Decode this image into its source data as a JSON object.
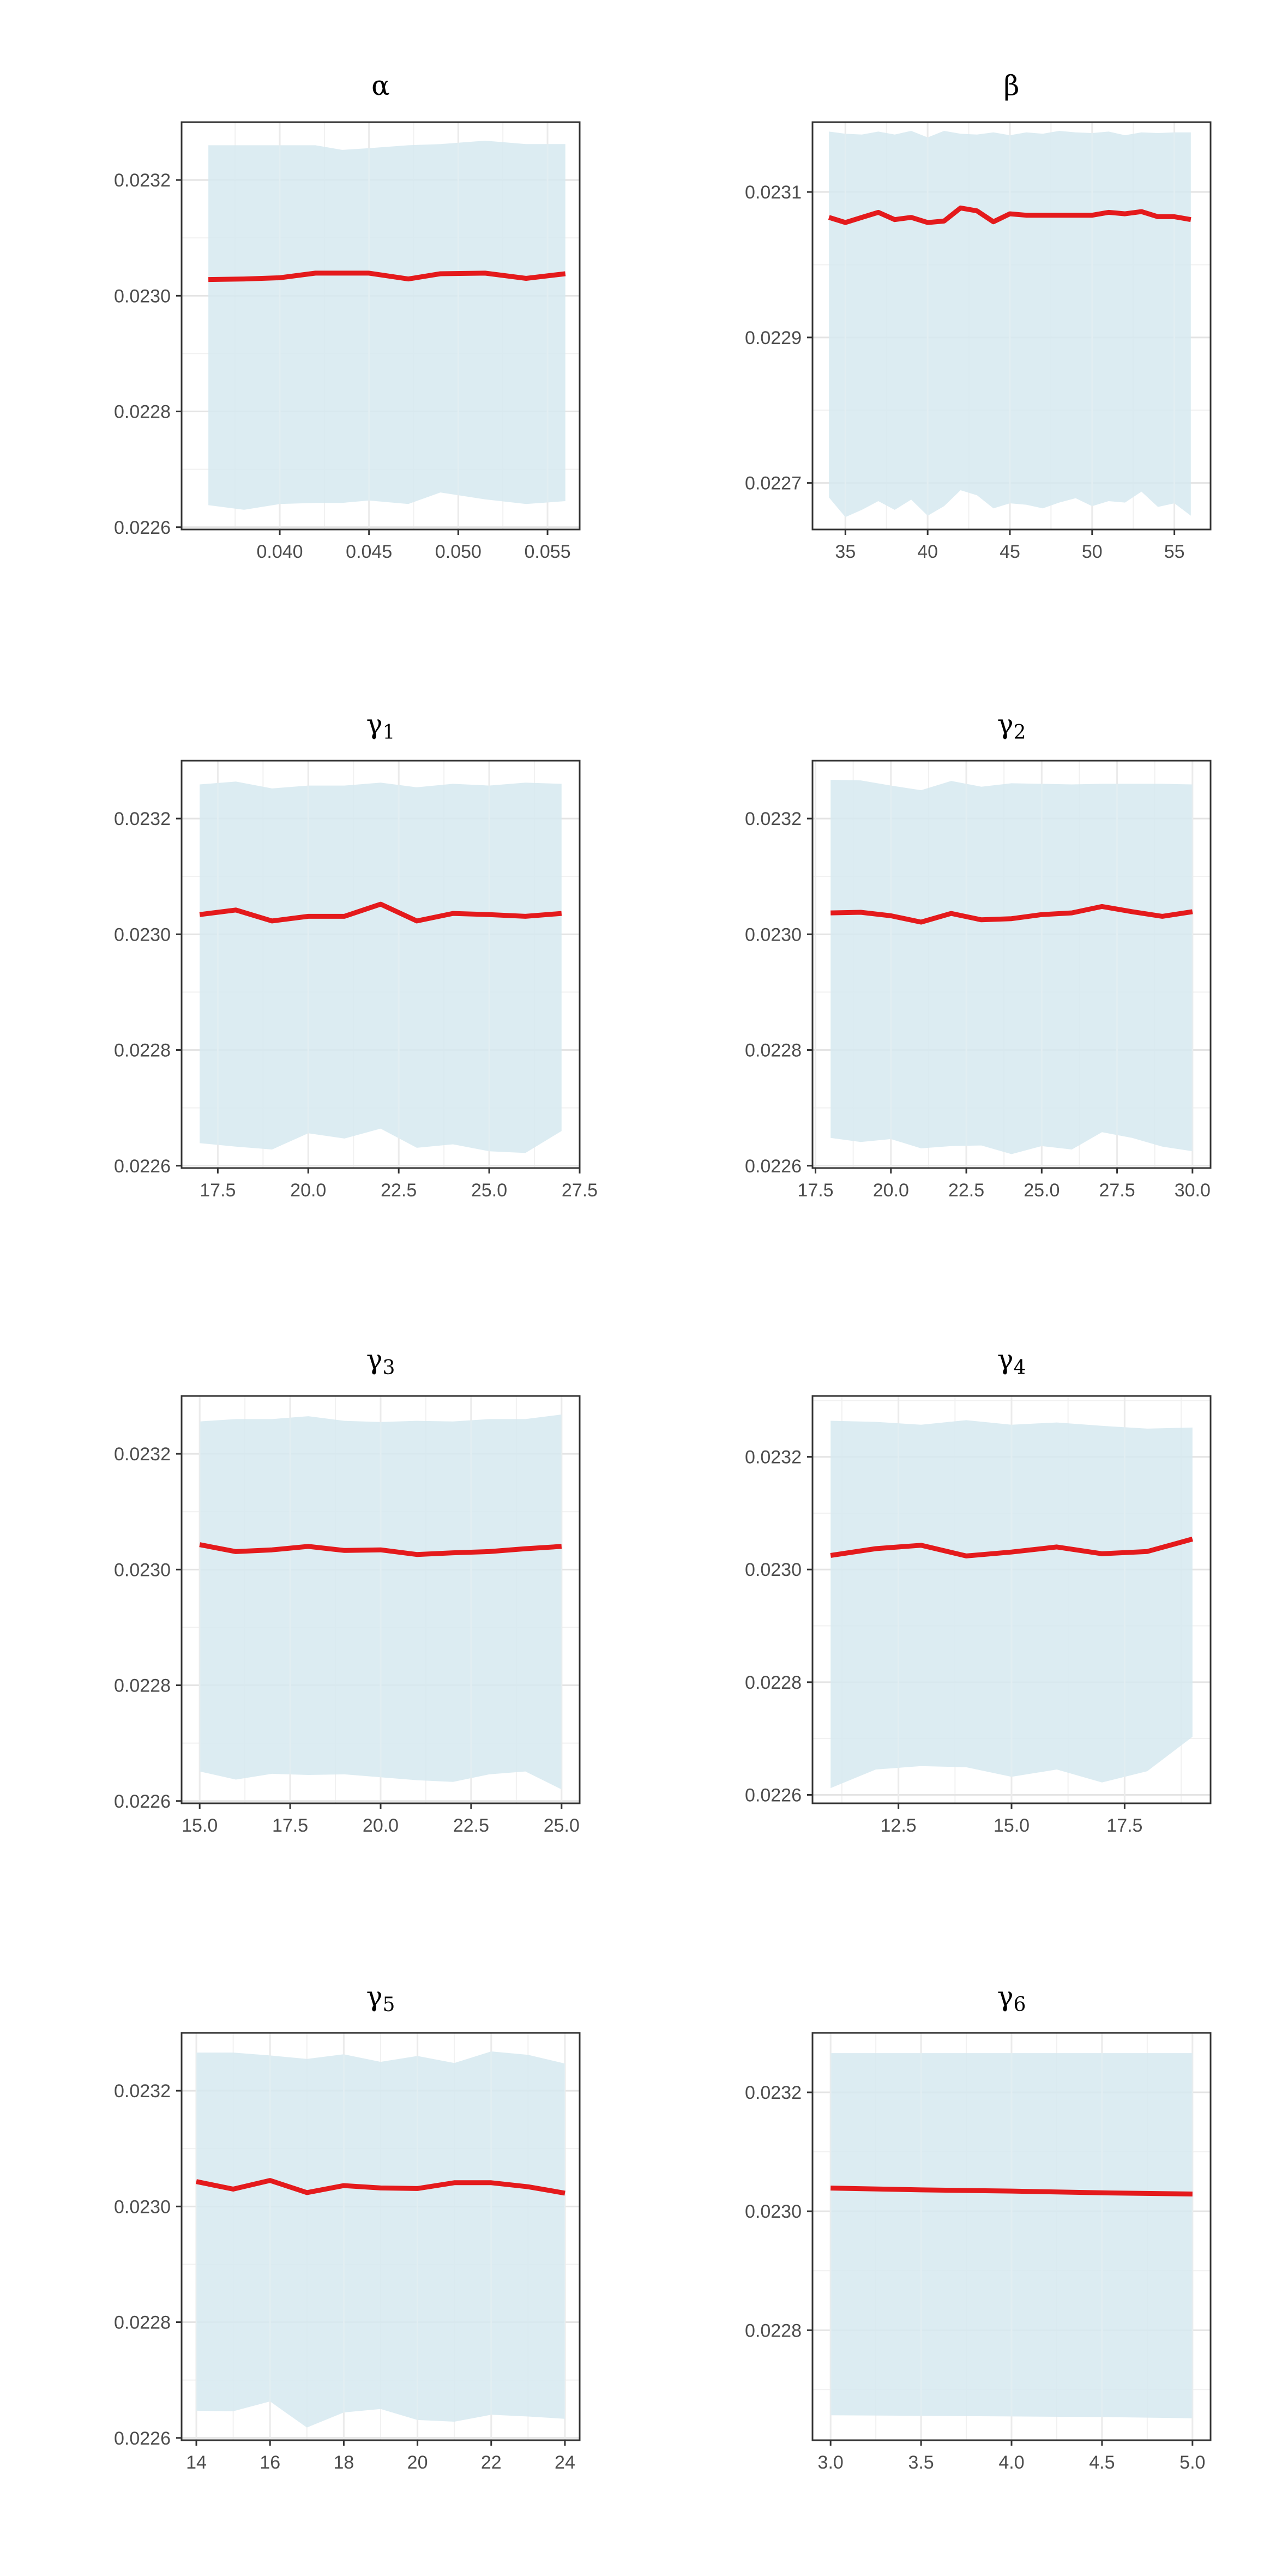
{
  "colors": {
    "band": "#d6e9f0",
    "line": "#e41a1c",
    "grid_major": "#e4e4e4",
    "grid_minor": "#f1f1f1",
    "frame": "#333333",
    "tick_text": "#4d4d4d"
  },
  "chart_data": [
    {
      "type": "line",
      "title": "α",
      "title_sub": "",
      "x": [
        0.036,
        0.038,
        0.04,
        0.042,
        0.0435,
        0.045,
        0.0472,
        0.049,
        0.0515,
        0.0538,
        0.056
      ],
      "y": [
        0.023028,
        0.023029,
        0.023031,
        0.023039,
        0.023039,
        0.023039,
        0.023029,
        0.023038,
        0.023039,
        0.02303,
        0.023038
      ],
      "band_upper": [
        0.02326,
        0.02326,
        0.02326,
        0.02326,
        0.023252,
        0.023255,
        0.02326,
        0.023262,
        0.023268,
        0.023262,
        0.023262
      ],
      "band_lower": [
        0.022638,
        0.02263,
        0.02264,
        0.022642,
        0.022642,
        0.022646,
        0.02264,
        0.02266,
        0.022648,
        0.02264,
        0.022645
      ],
      "xlim": [
        0.0345,
        0.0568
      ],
      "ylim": [
        0.022596,
        0.0233
      ],
      "xticks": [
        0.04,
        0.045,
        0.05,
        0.055
      ],
      "xtick_labels": [
        "0.040",
        "0.045",
        "0.050",
        "0.055"
      ],
      "yticks": [
        0.0226,
        0.0228,
        0.023,
        0.0232
      ],
      "ytick_labels": [
        "0.0226",
        "0.0228",
        "0.0230",
        "0.0232"
      ],
      "grid": true,
      "legend": "none"
    },
    {
      "type": "line",
      "title": "β",
      "title_sub": "",
      "x": [
        34,
        35,
        36,
        37,
        38,
        39,
        40,
        41,
        42,
        43,
        44,
        45,
        46,
        47,
        48,
        49,
        50,
        51,
        52,
        53,
        54,
        55,
        56
      ],
      "y": [
        0.023065,
        0.023058,
        0.023065,
        0.023072,
        0.023062,
        0.023065,
        0.023058,
        0.02306,
        0.023078,
        0.023074,
        0.023059,
        0.02307,
        0.023068,
        0.023068,
        0.023068,
        0.023068,
        0.023068,
        0.023072,
        0.02307,
        0.023073,
        0.023066,
        0.023066,
        0.023062
      ],
      "band_upper": [
        0.023183,
        0.02318,
        0.023179,
        0.023183,
        0.023179,
        0.023184,
        0.023175,
        0.023184,
        0.02318,
        0.023179,
        0.023182,
        0.023178,
        0.023182,
        0.02318,
        0.023184,
        0.023182,
        0.023181,
        0.023183,
        0.023178,
        0.023182,
        0.023181,
        0.023182,
        0.023182
      ],
      "band_lower": [
        0.02268,
        0.022653,
        0.022663,
        0.022675,
        0.022663,
        0.022677,
        0.022655,
        0.022668,
        0.02269,
        0.022683,
        0.022665,
        0.022672,
        0.02267,
        0.022665,
        0.022673,
        0.022679,
        0.022668,
        0.022675,
        0.022673,
        0.022688,
        0.022667,
        0.022672,
        0.022655
      ],
      "xlim": [
        33.0,
        57.2
      ],
      "ylim": [
        0.022636,
        0.023196
      ],
      "xticks": [
        35,
        40,
        45,
        50,
        55
      ],
      "xtick_labels": [
        "35",
        "40",
        "45",
        "50",
        "55"
      ],
      "yticks": [
        0.0227,
        0.0229,
        0.0231
      ],
      "ytick_labels": [
        "0.0227",
        "0.0229",
        "0.0231"
      ],
      "grid": true,
      "legend": "none"
    },
    {
      "type": "line",
      "title": "γ",
      "title_sub": "1",
      "x": [
        17,
        18,
        19,
        20,
        21,
        22,
        23,
        24,
        25,
        26,
        27
      ],
      "y": [
        0.023034,
        0.023042,
        0.023023,
        0.023031,
        0.023031,
        0.023052,
        0.023023,
        0.023036,
        0.023034,
        0.023031,
        0.023036
      ],
      "band_upper": [
        0.023259,
        0.023264,
        0.023252,
        0.023257,
        0.023257,
        0.023262,
        0.023254,
        0.02326,
        0.023257,
        0.023262,
        0.02326
      ],
      "band_lower": [
        0.022639,
        0.022633,
        0.022628,
        0.022656,
        0.022647,
        0.022664,
        0.022631,
        0.022637,
        0.022625,
        0.022622,
        0.02266
      ],
      "xlim": [
        16.5,
        27.5
      ],
      "ylim": [
        0.022596,
        0.0233
      ],
      "xticks": [
        17.5,
        20.0,
        22.5,
        25.0,
        27.5
      ],
      "xtick_labels": [
        "17.5",
        "20.0",
        "22.5",
        "25.0",
        "27.5"
      ],
      "yticks": [
        0.0226,
        0.0228,
        0.023,
        0.0232
      ],
      "ytick_labels": [
        "0.0226",
        "0.0228",
        "0.0230",
        "0.0232"
      ],
      "grid": true,
      "legend": "none"
    },
    {
      "type": "line",
      "title": "γ",
      "title_sub": "2",
      "x": [
        18,
        19,
        20,
        21,
        22,
        23,
        24,
        25,
        26,
        27,
        28,
        29,
        30
      ],
      "y": [
        0.023037,
        0.023038,
        0.023032,
        0.023021,
        0.023036,
        0.023025,
        0.023027,
        0.023034,
        0.023037,
        0.023048,
        0.023039,
        0.023031,
        0.023039
      ],
      "band_upper": [
        0.023267,
        0.023266,
        0.023257,
        0.023249,
        0.023265,
        0.023255,
        0.023261,
        0.02326,
        0.023259,
        0.02326,
        0.02326,
        0.02326,
        0.023259
      ],
      "band_lower": [
        0.022648,
        0.022641,
        0.022646,
        0.02263,
        0.022634,
        0.022635,
        0.02262,
        0.022634,
        0.022628,
        0.022658,
        0.022648,
        0.022633,
        0.022625
      ],
      "xlim": [
        17.4,
        30.6
      ],
      "ylim": [
        0.022596,
        0.0233
      ],
      "xticks": [
        17.5,
        20.0,
        22.5,
        25.0,
        27.5,
        30.0
      ],
      "xtick_labels": [
        "17.5",
        "20.0",
        "22.5",
        "25.0",
        "27.5",
        "30.0"
      ],
      "yticks": [
        0.0226,
        0.0228,
        0.023,
        0.0232
      ],
      "ytick_labels": [
        "0.0226",
        "0.0228",
        "0.0230",
        "0.0232"
      ],
      "grid": true,
      "legend": "none"
    },
    {
      "type": "line",
      "title": "γ",
      "title_sub": "3",
      "x": [
        15,
        16,
        17,
        18,
        19,
        20,
        21,
        22,
        23,
        24,
        25
      ],
      "y": [
        0.023043,
        0.023031,
        0.023034,
        0.02304,
        0.023033,
        0.023034,
        0.023026,
        0.023029,
        0.023031,
        0.023036,
        0.02304
      ],
      "band_upper": [
        0.023256,
        0.02326,
        0.02326,
        0.023265,
        0.023257,
        0.023255,
        0.023257,
        0.023256,
        0.02326,
        0.02326,
        0.023268
      ],
      "band_lower": [
        0.022651,
        0.022637,
        0.022647,
        0.022645,
        0.022646,
        0.022641,
        0.022636,
        0.022633,
        0.022646,
        0.022651,
        0.02262
      ],
      "xlim": [
        14.5,
        25.5
      ],
      "ylim": [
        0.022596,
        0.0233
      ],
      "xticks": [
        15.0,
        17.5,
        20.0,
        22.5,
        25.0
      ],
      "xtick_labels": [
        "15.0",
        "17.5",
        "20.0",
        "22.5",
        "25.0"
      ],
      "yticks": [
        0.0226,
        0.0228,
        0.023,
        0.0232
      ],
      "ytick_labels": [
        "0.0226",
        "0.0228",
        "0.0230",
        "0.0232"
      ],
      "grid": true,
      "legend": "none"
    },
    {
      "type": "line",
      "title": "γ",
      "title_sub": "4",
      "x": [
        11,
        12,
        13,
        14,
        15,
        16,
        17,
        18,
        19
      ],
      "y": [
        0.023025,
        0.023037,
        0.023043,
        0.023024,
        0.023031,
        0.02304,
        0.023028,
        0.023032,
        0.023054
      ],
      "band_upper": [
        0.023264,
        0.023262,
        0.023257,
        0.023265,
        0.023257,
        0.023261,
        0.023255,
        0.02325,
        0.023252
      ],
      "band_lower": [
        0.022612,
        0.022645,
        0.022651,
        0.022649,
        0.022632,
        0.022645,
        0.022622,
        0.022642,
        0.022703
      ],
      "xlim": [
        10.6,
        19.4
      ],
      "ylim": [
        0.022585,
        0.023308
      ],
      "xticks": [
        12.5,
        15.0,
        17.5
      ],
      "xtick_labels": [
        "12.5",
        "15.0",
        "17.5"
      ],
      "yticks": [
        0.0226,
        0.0228,
        0.023,
        0.0232
      ],
      "ytick_labels": [
        "0.0226",
        "0.0228",
        "0.0230",
        "0.0232"
      ],
      "grid": true,
      "legend": "none"
    },
    {
      "type": "line",
      "title": "γ",
      "title_sub": "5",
      "x": [
        14,
        15,
        16,
        17,
        18,
        19,
        20,
        21,
        22,
        23,
        24
      ],
      "y": [
        0.023043,
        0.02303,
        0.023045,
        0.023024,
        0.023036,
        0.023032,
        0.023031,
        0.023041,
        0.023041,
        0.023034,
        0.023023
      ],
      "band_upper": [
        0.023266,
        0.023266,
        0.023261,
        0.023255,
        0.023263,
        0.02325,
        0.02326,
        0.023248,
        0.023268,
        0.023262,
        0.023247
      ],
      "band_lower": [
        0.022647,
        0.022646,
        0.022663,
        0.022618,
        0.022644,
        0.02265,
        0.022631,
        0.022628,
        0.02264,
        0.022637,
        0.022633
      ],
      "xlim": [
        13.6,
        24.4
      ],
      "ylim": [
        0.022596,
        0.0233
      ],
      "xticks": [
        14,
        16,
        18,
        20,
        22,
        24
      ],
      "xtick_labels": [
        "14",
        "16",
        "18",
        "20",
        "22",
        "24"
      ],
      "yticks": [
        0.0226,
        0.0228,
        0.023,
        0.0232
      ],
      "ytick_labels": [
        "0.0226",
        "0.0228",
        "0.0230",
        "0.0232"
      ],
      "grid": true,
      "legend": "none"
    },
    {
      "type": "line",
      "title": "γ",
      "title_sub": "6",
      "x": [
        3.0,
        3.5,
        4.0,
        4.5,
        5.0
      ],
      "y": [
        0.023039,
        0.023036,
        0.023034,
        0.023031,
        0.023029
      ],
      "band_upper": [
        0.023266,
        0.023266,
        0.023266,
        0.023266,
        0.023266
      ],
      "band_lower": [
        0.022657,
        0.022656,
        0.022655,
        0.022654,
        0.022652
      ],
      "xlim": [
        2.9,
        5.1
      ],
      "ylim": [
        0.022615,
        0.0233
      ],
      "xticks": [
        3.0,
        3.5,
        4.0,
        4.5,
        5.0
      ],
      "xtick_labels": [
        "3.0",
        "3.5",
        "4.0",
        "4.5",
        "5.0"
      ],
      "yticks": [
        0.0228,
        0.023,
        0.0232
      ],
      "ytick_labels": [
        "0.0228",
        "0.0230",
        "0.0232"
      ],
      "grid": true,
      "legend": "none"
    }
  ]
}
